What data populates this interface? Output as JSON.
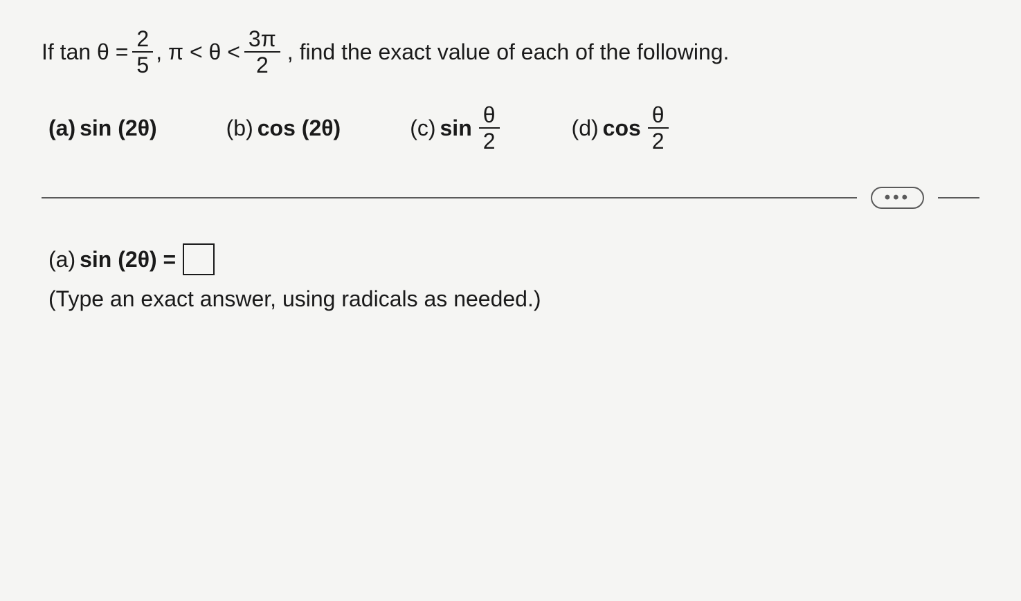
{
  "problem": {
    "prefix": "If tan θ =",
    "frac1_num": "2",
    "frac1_den": "5",
    "mid": ", π < θ <",
    "frac2_num": "3π",
    "frac2_den": "2",
    "suffix": ", find the exact value of each of the following."
  },
  "parts": {
    "a": {
      "label": "(a)",
      "expr": "sin (2θ)"
    },
    "b": {
      "label": "(b)",
      "expr": "cos (2θ)"
    },
    "c": {
      "label": "(c)",
      "func": "sin",
      "frac_num": "θ",
      "frac_den": "2"
    },
    "d": {
      "label": "(d)",
      "func": "cos",
      "frac_num": "θ",
      "frac_den": "2"
    }
  },
  "ellipsis": "•••",
  "answer": {
    "label": "(a)",
    "lhs": "sin (2θ) ="
  },
  "hint": "(Type an exact answer, using radicals as needed.)"
}
